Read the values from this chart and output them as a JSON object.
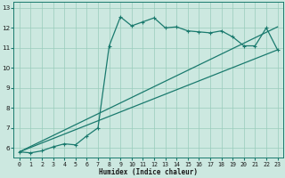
{
  "xlabel": "Humidex (Indice chaleur)",
  "bg_color": "#cce8e0",
  "grid_color": "#99ccbb",
  "line_color": "#1a7a6e",
  "xlim": [
    -0.5,
    23.5
  ],
  "ylim": [
    5.5,
    13.3
  ],
  "xticks": [
    0,
    1,
    2,
    3,
    4,
    5,
    6,
    7,
    8,
    9,
    10,
    11,
    12,
    13,
    14,
    15,
    16,
    17,
    18,
    19,
    20,
    21,
    22,
    23
  ],
  "yticks": [
    6,
    7,
    8,
    9,
    10,
    11,
    12,
    13
  ],
  "main_x": [
    0,
    1,
    2,
    3,
    4,
    5,
    6,
    7,
    8,
    9,
    10,
    11,
    12,
    13,
    14,
    15,
    16,
    17,
    18,
    19,
    20,
    21,
    22,
    23
  ],
  "main_y": [
    5.8,
    5.75,
    5.85,
    6.05,
    6.2,
    6.15,
    6.6,
    7.0,
    11.1,
    12.55,
    12.1,
    12.3,
    12.5,
    12.0,
    12.05,
    11.85,
    11.8,
    11.75,
    11.85,
    11.55,
    11.1,
    11.1,
    12.0,
    10.9
  ],
  "line1_x": [
    0,
    23
  ],
  "line1_y": [
    5.8,
    10.9
  ],
  "line2_x": [
    0,
    23
  ],
  "line2_y": [
    5.8,
    12.05
  ],
  "figsize": [
    3.2,
    2.0
  ],
  "dpi": 100
}
